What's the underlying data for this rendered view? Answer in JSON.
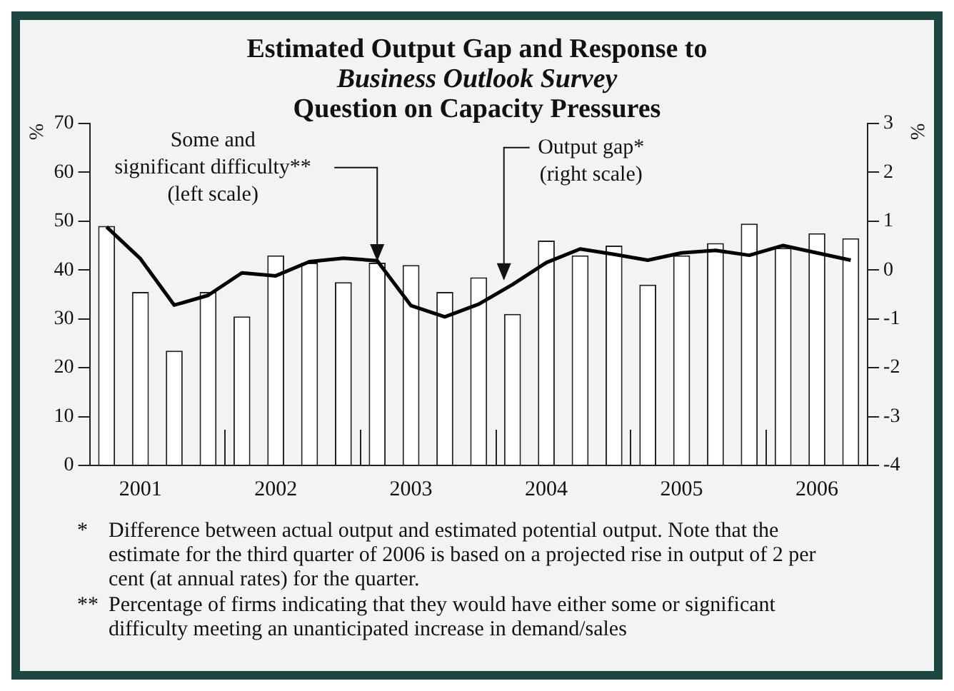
{
  "chart_data": {
    "type": "bar",
    "title": "Estimated Output Gap and Response to\nBusiness Outlook Survey\nQuestion on Capacity Pressures",
    "ylabel": "%",
    "y2label": "%",
    "categories": [
      null,
      "2001",
      null,
      null,
      null,
      "2002",
      null,
      null,
      null,
      "2003",
      null,
      null,
      null,
      "2004",
      null,
      null,
      null,
      "2005",
      null,
      null,
      null,
      "2006",
      null
    ],
    "series": [
      {
        "name": "Some and\nsignificant difficulty**\n(left scale)",
        "color": "#ffffff",
        "values": [
          49,
          35.5,
          23.5,
          35.5,
          30.5,
          43,
          41.5,
          37.5,
          41.5,
          41,
          35.5,
          38.5,
          31,
          46,
          43,
          45,
          37,
          43,
          45.5,
          49.5,
          44.5,
          47.5,
          46.5
        ]
      },
      {
        "name": "Output gap*\n(right scale)",
        "type": "line",
        "axis": "y2",
        "color": "#000000",
        "values": [
          0.88,
          0.23,
          -0.72,
          -0.52,
          -0.06,
          -0.12,
          0.17,
          0.24,
          0.19,
          -0.73,
          -0.96,
          -0.7,
          -0.3,
          0.15,
          0.43,
          0.32,
          0.2,
          0.35,
          0.4,
          0.3,
          0.5,
          0.35,
          0.2
        ]
      }
    ],
    "ylim": [
      0,
      70
    ],
    "yticks": [
      0,
      10,
      20,
      30,
      40,
      50,
      60,
      70
    ],
    "y2lim": [
      -4,
      3
    ],
    "y2ticks": [
      -4,
      -3,
      -2,
      -1,
      0,
      1,
      2,
      3
    ],
    "grid": false,
    "legend": false,
    "marker": "none",
    "line_style": "solid",
    "annotations": [
      "* Difference between actual output and estimated potential output. Note that the estimate for the third quarter of 2006 is based on a projected rise in output of 2 per cent (at annual rates) for the quarter.",
      "** Percentage of firms indicating that they would have either some or significant difficulty meeting an unanticipated increase in demand/sales"
    ]
  }
}
